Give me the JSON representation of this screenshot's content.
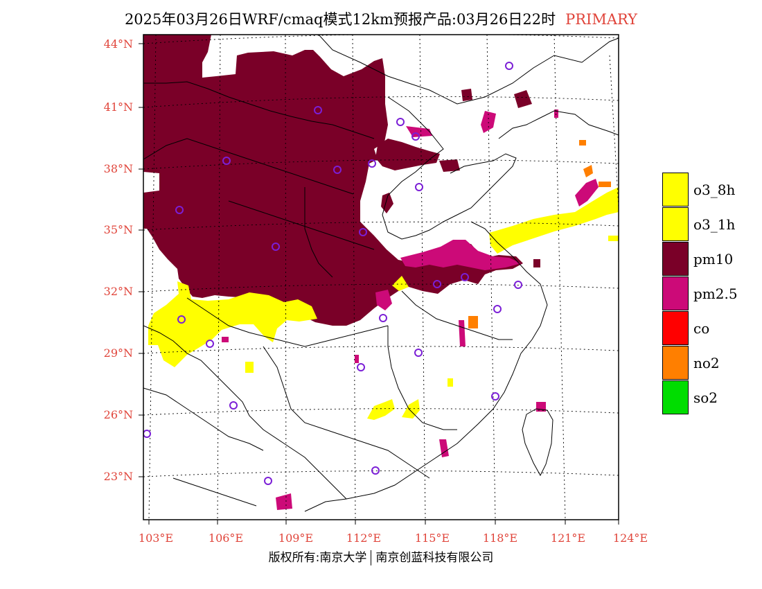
{
  "title": {
    "main": "2025年03月26日WRF/cmaq模式12km预报产品:03月26日22时",
    "tag": "PRIMARY"
  },
  "map": {
    "lat_labels": [
      "44°N",
      "41°N",
      "38°N",
      "35°N",
      "32°N",
      "29°N",
      "26°N",
      "23°N"
    ],
    "lon_labels": [
      "103°E",
      "106°E",
      "109°E",
      "112°E",
      "115°E",
      "118°E",
      "121°E",
      "124°E"
    ],
    "colors": {
      "label": "#e0443a",
      "pm10": "#7a0028",
      "pm25": "#cc0a78",
      "o3": "#ffff00",
      "no2": "#ff7f00"
    }
  },
  "legend": [
    {
      "label": "o3_8h",
      "color": "#ffff00"
    },
    {
      "label": "o3_1h",
      "color": "#ffff00"
    },
    {
      "label": "pm10",
      "color": "#7a0028"
    },
    {
      "label": "pm2.5",
      "color": "#cc0a78"
    },
    {
      "label": "co",
      "color": "#ff0000"
    },
    {
      "label": "no2",
      "color": "#ff7f00"
    },
    {
      "label": "so2",
      "color": "#00dd00"
    }
  ],
  "copyright": {
    "left": "版权所有:南京大学",
    "right": "南京创蓝科技有限公司"
  }
}
